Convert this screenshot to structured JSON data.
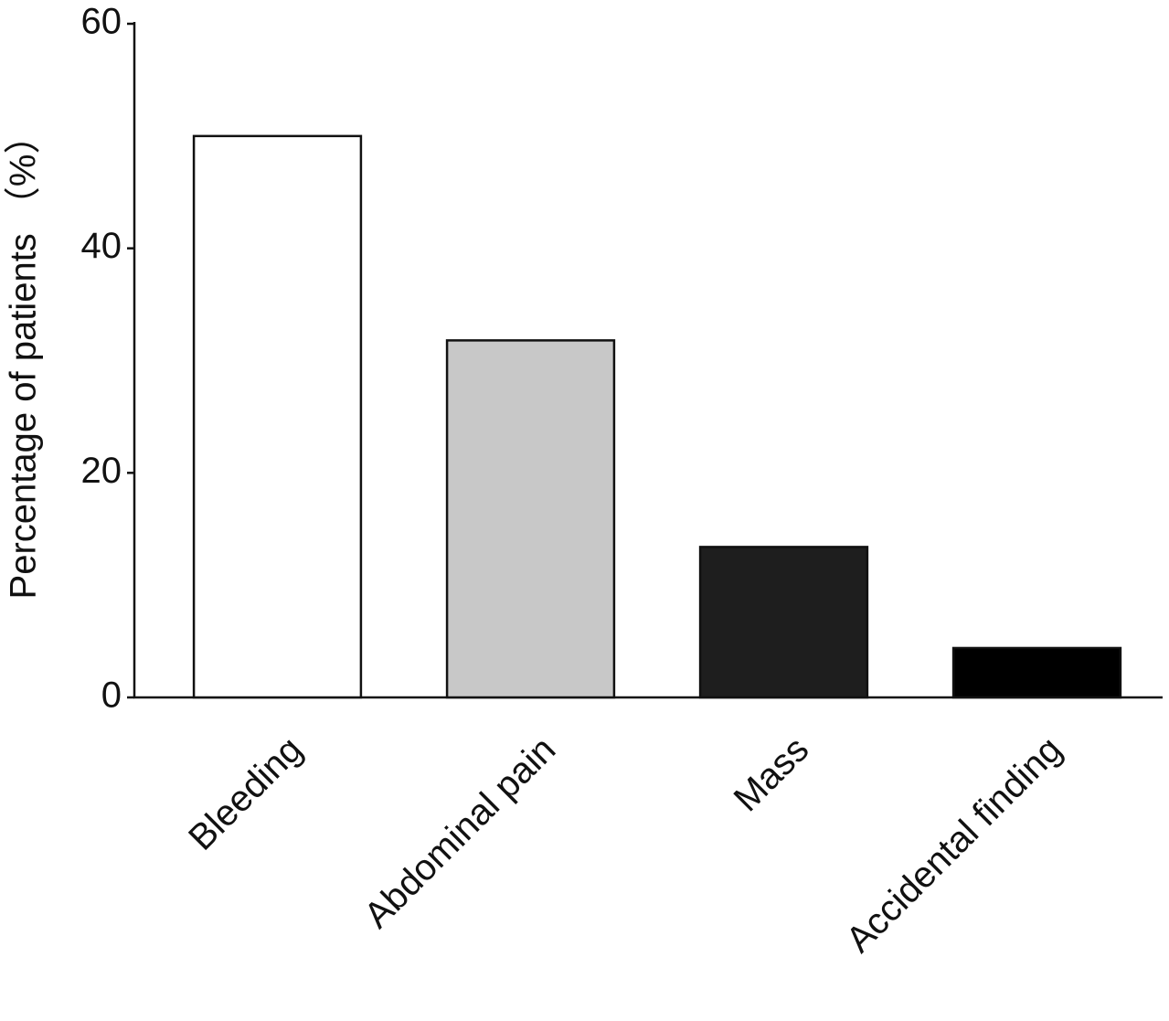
{
  "chart_data": {
    "type": "bar",
    "y_label": "Percentage of patients （%）",
    "categories": [
      "Bleeding",
      "Abdominal pain",
      "Mass",
      "Accidental finding"
    ],
    "values": [
      50,
      31.8,
      13.4,
      4.4
    ],
    "colors": [
      "#ffffff",
      "#c8c8c8",
      "#1e1e1e",
      "#000000"
    ],
    "ylim": [
      0,
      60
    ],
    "yticks": [
      0,
      20,
      40,
      60
    ],
    "grid": false
  }
}
